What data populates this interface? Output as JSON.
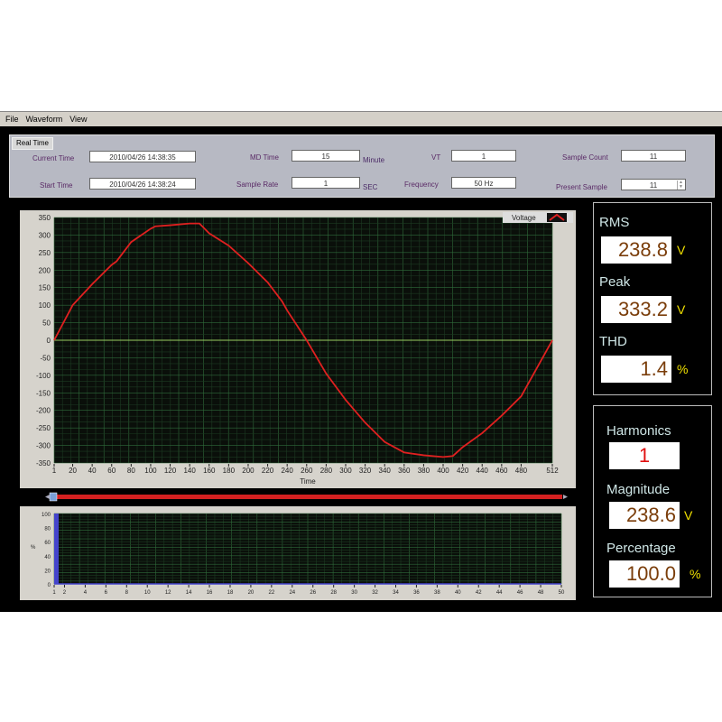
{
  "menu": [
    "File",
    "Waveform",
    "View"
  ],
  "info": {
    "tab": "Real Time",
    "current_time_label": "Current Time",
    "current_time": "2010/04/26 14:38:35",
    "start_time_label": "Start Time",
    "start_time": "2010/04/26 14:38:24",
    "md_time_label": "MD Time",
    "md_time": "15",
    "md_unit": "Minute",
    "sample_rate_label": "Sample Rate",
    "sample_rate": "1",
    "sample_rate_unit": "SEC",
    "vt_label": "VT",
    "vt": "1",
    "frequency_label": "Frequency",
    "frequency": "50 Hz",
    "sample_count_label": "Sample Count",
    "sample_count": "11",
    "present_sample_label": "Present Sample",
    "present_sample": "11"
  },
  "measure": {
    "rms_label": "RMS",
    "rms": "238.8",
    "rms_unit": "V",
    "peak_label": "Peak",
    "peak": "333.2",
    "peak_unit": "V",
    "thd_label": "THD",
    "thd": "1.4",
    "thd_unit": "%"
  },
  "harm": {
    "harmonics_label": "Harmonics",
    "harmonics": "1",
    "magnitude_label": "Magnitude",
    "magnitude": "238.6",
    "magnitude_unit": "V",
    "percentage_label": "Percentage",
    "percentage": "100.0",
    "percentage_unit": "%"
  },
  "colors": {
    "trace": "#e02020",
    "grid": "#2f6a3a",
    "plot_bg": "#0a0f0a",
    "bar": "#4444cc"
  },
  "chart_data": [
    {
      "type": "line",
      "xlabel": "Time",
      "ylabel": "",
      "legend": "Voltage",
      "legend_position": "top-right",
      "grid": true,
      "xlim": [
        1,
        512
      ],
      "ylim": [
        -350,
        350
      ],
      "xticks": [
        1,
        20,
        40,
        60,
        80,
        100,
        120,
        140,
        160,
        180,
        200,
        220,
        240,
        260,
        280,
        300,
        320,
        340,
        360,
        380,
        400,
        420,
        440,
        460,
        480,
        512
      ],
      "yticks": [
        350,
        300,
        250,
        200,
        150,
        100,
        50,
        0,
        -50,
        -100,
        -150,
        -200,
        -250,
        -300,
        -350
      ],
      "series": [
        {
          "name": "Voltage",
          "x": [
            1,
            20,
            40,
            60,
            65,
            80,
            100,
            105,
            120,
            140,
            150,
            160,
            180,
            200,
            220,
            235,
            240,
            260,
            280,
            300,
            320,
            340,
            360,
            380,
            400,
            410,
            420,
            440,
            460,
            480,
            512
          ],
          "y": [
            0,
            100,
            160,
            215,
            225,
            280,
            318,
            325,
            328,
            333,
            333,
            305,
            270,
            220,
            165,
            110,
            85,
            0,
            -95,
            -170,
            -235,
            -290,
            -320,
            -328,
            -333,
            -330,
            -305,
            -265,
            -215,
            -160,
            0
          ]
        }
      ]
    },
    {
      "type": "bar",
      "xlabel": "",
      "ylabel": "%",
      "grid": true,
      "xlim": [
        1,
        50
      ],
      "ylim": [
        0,
        100
      ],
      "xticks": [
        1,
        2,
        4,
        6,
        8,
        10,
        12,
        14,
        16,
        18,
        20,
        22,
        24,
        26,
        28,
        30,
        32,
        34,
        36,
        38,
        40,
        42,
        44,
        46,
        48,
        50
      ],
      "yticks": [
        100,
        80,
        60,
        40,
        20,
        0
      ],
      "categories": [
        1
      ],
      "values": [
        100
      ]
    }
  ]
}
